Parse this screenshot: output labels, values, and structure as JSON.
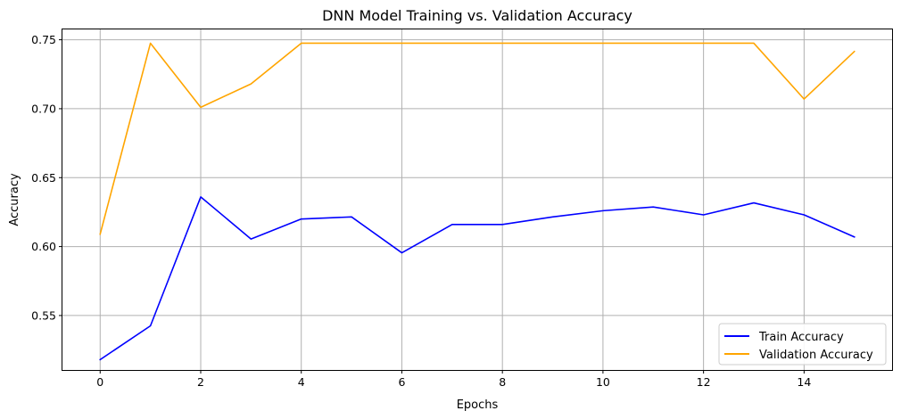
{
  "chart_data": {
    "type": "line",
    "title": "DNN Model Training vs. Validation Accuracy",
    "xlabel": "Epochs",
    "ylabel": "Accuracy",
    "x": [
      0,
      1,
      2,
      3,
      4,
      5,
      6,
      7,
      8,
      9,
      10,
      11,
      12,
      13,
      14,
      15
    ],
    "xlim": [
      -0.75,
      15.75
    ],
    "ylim": [
      0.5105,
      0.7575
    ],
    "xticks": [
      0,
      2,
      4,
      6,
      8,
      10,
      12,
      14
    ],
    "xtick_labels": [
      "0",
      "2",
      "4",
      "6",
      "8",
      "10",
      "12",
      "14"
    ],
    "yticks": [
      0.55,
      0.6,
      0.65,
      0.7,
      0.75
    ],
    "ytick_labels": [
      "0.55",
      "0.60",
      "0.65",
      "0.70",
      "0.75"
    ],
    "grid": true,
    "legend_position": "lower-right",
    "series": [
      {
        "name": "Train Accuracy",
        "color": "#0000ff",
        "values": [
          0.518,
          0.5425,
          0.636,
          0.6055,
          0.62,
          0.6215,
          0.5955,
          0.616,
          0.616,
          0.6215,
          0.626,
          0.6287,
          0.623,
          0.6317,
          0.623,
          0.607
        ]
      },
      {
        "name": "Validation Accuracy",
        "color": "#ffa500",
        "values": [
          0.609,
          0.7475,
          0.701,
          0.718,
          0.7475,
          0.7475,
          0.7475,
          0.7475,
          0.7475,
          0.7475,
          0.7475,
          0.7475,
          0.7475,
          0.7475,
          0.707,
          0.7415
        ]
      }
    ]
  }
}
